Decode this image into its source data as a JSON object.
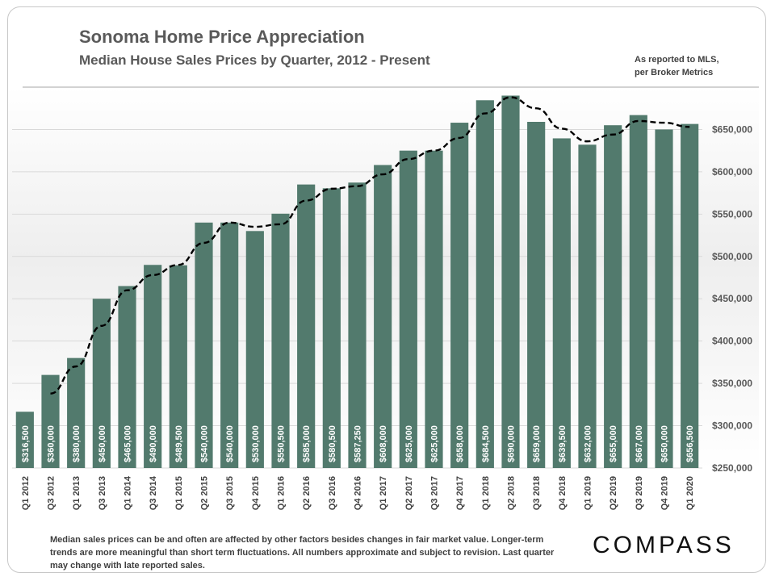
{
  "header": {
    "title": "Sonoma Home Price Appreciation",
    "subtitle": "Median House Sales Prices by Quarter, 2012 - Present",
    "source_line1": "As reported to MLS,",
    "source_line2": "per Broker Metrics"
  },
  "footer": {
    "footnote": "Median sales prices can be and often are affected by other factors besides changes in fair market value. Longer-term trends are more meaningful than short term fluctuations. All numbers approximate and subject to revision. Last quarter may change  with late reported sales.",
    "logo": "COMPASS"
  },
  "colors": {
    "bar": "#527a6d",
    "trend": "#000000",
    "grid": "#d9d9d9"
  },
  "chart_data": {
    "type": "bar",
    "title": "Sonoma Home Price Appreciation",
    "subtitle": "Median House Sales Prices by Quarter, 2012 - Present",
    "categories": [
      "Q1 2012",
      "Q3 2012",
      "Q1 2013",
      "Q3 2013",
      "Q1 2014",
      "Q3 2014",
      "Q1 2015",
      "Q2 2015",
      "Q3 2015",
      "Q4 2015",
      "Q1 2016",
      "Q2 2016",
      "Q3 2016",
      "Q4 2016",
      "Q1 2017",
      "Q2 2017",
      "Q3 2017",
      "Q4 2017",
      "Q1 2018",
      "Q2 2018",
      "Q3 2018",
      "Q4 2018",
      "Q1 2019",
      "Q2 2019",
      "Q3 2019",
      "Q4 2019",
      "Q1 2020"
    ],
    "values": [
      316500,
      360000,
      380000,
      450000,
      465000,
      490000,
      489500,
      540000,
      540000,
      530000,
      550500,
      585000,
      580500,
      587250,
      608000,
      625000,
      625000,
      658000,
      684500,
      690000,
      659000,
      639500,
      632000,
      655000,
      667000,
      650000,
      656500
    ],
    "labels": [
      "$316,500",
      "$360,000",
      "$380,000",
      "$450,000",
      "$465,000",
      "$490,000",
      "$489,500",
      "$540,000",
      "$540,000",
      "$530,000",
      "$550,500",
      "$585,000",
      "$580,500",
      "$587,250",
      "$608,000",
      "$625,000",
      "$625,000",
      "$658,000",
      "$684,500",
      "$690,000",
      "$659,000",
      "$639,500",
      "$632,000",
      "$655,000",
      "$667,000",
      "$650,000",
      "$656,500"
    ],
    "trend": {
      "style": "dashed",
      "start_index": 1,
      "values": [
        338000,
        370000,
        418000,
        460000,
        478000,
        490000,
        516000,
        540000,
        535000,
        538000,
        566000,
        580000,
        583000,
        597000,
        615000,
        625000,
        640000,
        669000,
        688000,
        675000,
        651000,
        636000,
        644000,
        660000,
        658000,
        653000
      ]
    },
    "ylim": [
      250000,
      700000
    ],
    "yticks": [
      250000,
      300000,
      350000,
      400000,
      450000,
      500000,
      550000,
      600000,
      650000
    ],
    "ytick_labels": [
      "$250,000",
      "$300,000",
      "$350,000",
      "$400,000",
      "$450,000",
      "$500,000",
      "$550,000",
      "$600,000",
      "$650,000"
    ],
    "y_axis_position": "right",
    "grid": true
  }
}
